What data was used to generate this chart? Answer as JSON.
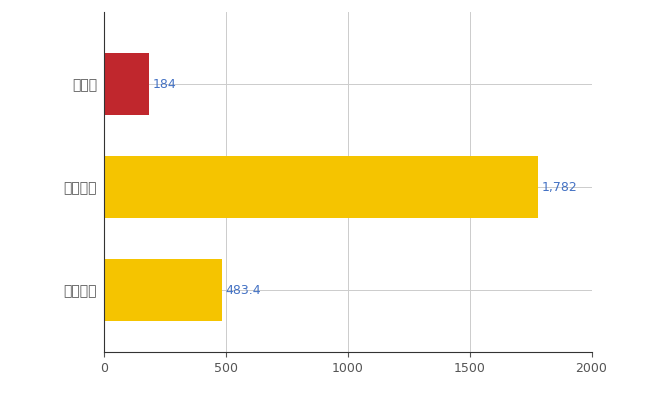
{
  "categories": [
    "鳥取県",
    "全国最大",
    "全国平均"
  ],
  "values": [
    184,
    1782,
    483.4
  ],
  "bar_colors": [
    "#C0272D",
    "#F5C400",
    "#F5C400"
  ],
  "value_labels": [
    "184",
    "1,782",
    "483.4"
  ],
  "xlim": [
    0,
    2000
  ],
  "xticks": [
    0,
    500,
    1000,
    1500,
    2000
  ],
  "background_color": "#FFFFFF",
  "grid_color": "#CCCCCC",
  "label_color": "#4472C4",
  "bar_height": 0.6,
  "figsize": [
    6.5,
    4.0
  ],
  "dpi": 100
}
